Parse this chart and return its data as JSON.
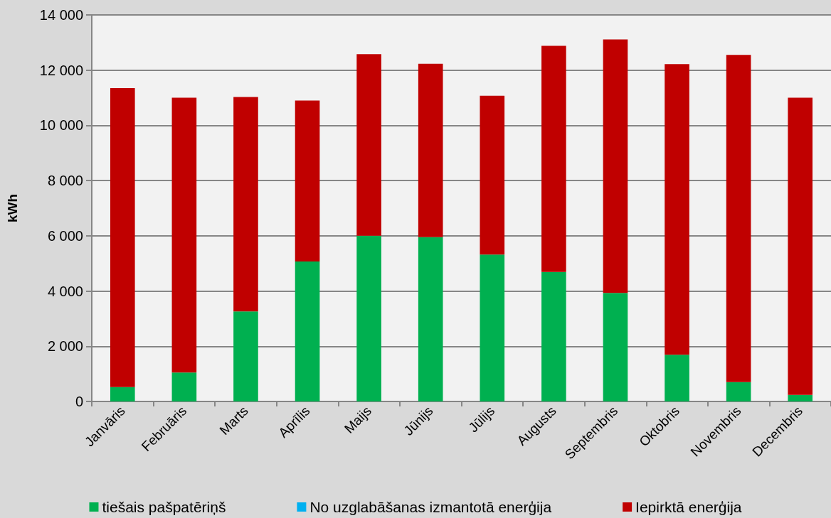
{
  "chart_data": {
    "type": "bar",
    "ylabel": "kWh",
    "stacked": true,
    "grid": "y",
    "legend": "bottom",
    "categories": [
      "Janvāris",
      "Februāris",
      "Marts",
      "Aprīlis",
      "Maijs",
      "Jūnijs",
      "Jūlijs",
      "Augusts",
      "Septembris",
      "Oktobris",
      "Novembris",
      "Decembris"
    ],
    "series": [
      {
        "name": "tiešais pašpatēriņš",
        "color": "#00b050",
        "values": [
          520,
          1050,
          3260,
          5070,
          6000,
          5950,
          5320,
          4690,
          3930,
          1690,
          700,
          240
        ]
      },
      {
        "name": "No uzglabāšanas izmantotā enerģija",
        "color": "#00b0f0",
        "values": [
          0,
          0,
          0,
          0,
          0,
          0,
          0,
          0,
          0,
          0,
          0,
          0
        ]
      },
      {
        "name": "Iepirktā enerģija",
        "color": "#c00000",
        "values": [
          10830,
          9950,
          7770,
          5830,
          6580,
          6280,
          5750,
          8190,
          9180,
          10530,
          11850,
          10760
        ]
      }
    ],
    "ylim": [
      0,
      14000
    ],
    "yticks": [
      {
        "value": 0,
        "label": "0"
      },
      {
        "value": 2000,
        "label": "2 000"
      },
      {
        "value": 4000,
        "label": "4 000"
      },
      {
        "value": 6000,
        "label": "6 000"
      },
      {
        "value": 8000,
        "label": "8 000"
      },
      {
        "value": 10000,
        "label": "10 000"
      },
      {
        "value": 12000,
        "label": "12 000"
      },
      {
        "value": 14000,
        "label": "14 000"
      }
    ]
  }
}
